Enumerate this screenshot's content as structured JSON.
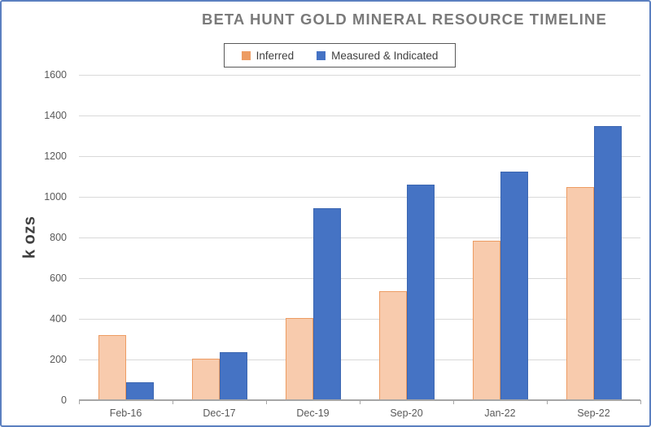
{
  "chart_data": {
    "type": "bar",
    "title": "BETA HUNT GOLD MINERAL RESOURCE TIMELINE",
    "xlabel": "",
    "ylabel": "k ozs",
    "categories": [
      "Feb-16",
      "Dec-17",
      "Dec-19",
      "Sep-20",
      "Jan-22",
      "Sep-22"
    ],
    "series": [
      {
        "name": "Inferred",
        "values": [
          320,
          205,
          405,
          535,
          785,
          1050
        ],
        "fill": "#F8CBAD",
        "border": "#ED9C63",
        "legend_swatch": "#ED9C63"
      },
      {
        "name": "Measured & Indicated",
        "values": [
          90,
          235,
          945,
          1060,
          1125,
          1350
        ],
        "fill": "#4573C4",
        "border": "#3D67B1",
        "legend_swatch": "#4472C4"
      }
    ],
    "ylim": [
      0,
      1600
    ],
    "yticks": [
      0,
      200,
      400,
      600,
      800,
      1000,
      1200,
      1400,
      1600
    ],
    "grid": "horizontal",
    "legend_position": "top-center",
    "colors": {
      "gridline": "#D9D9D9",
      "axis_line": "#A6A6A6",
      "tick_text": "#595959",
      "category_text": "#595959",
      "title_text": "#7A7A7A",
      "axis_title_text": "#3F3F3F",
      "legend_text": "#3F3F3F",
      "legend_border": "#595959",
      "frame_border": "#5B7FC0",
      "background": "#FFFFFF"
    }
  }
}
